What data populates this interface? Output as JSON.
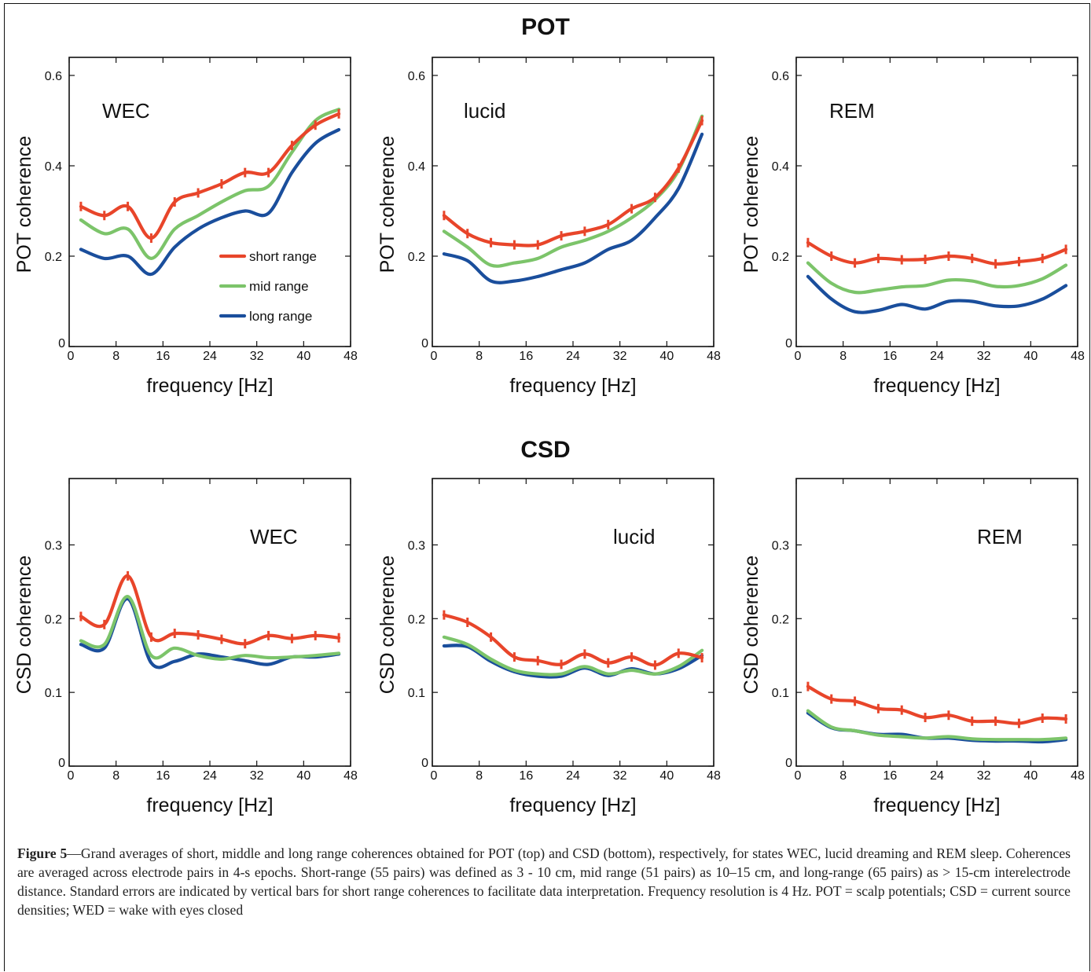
{
  "sections": {
    "pot_title": "POT",
    "csd_title": "CSD"
  },
  "legend": [
    {
      "label": "short range",
      "color": "#e8452a"
    },
    {
      "label": "mid range",
      "color": "#7cc46a"
    },
    {
      "label": "long range",
      "color": "#1a4e9c"
    }
  ],
  "colors": {
    "short": "#e8452a",
    "mid": "#7cc46a",
    "long": "#1a4e9c"
  },
  "caption": {
    "label": "Figure 5",
    "text": "—Grand averages of short, middle and long range coherences obtained for POT (top) and CSD (bottom), respectively, for states WEC, lucid dreaming and REM sleep. Coherences are averaged across electrode pairs in 4-s epochs. Short-range (55 pairs) was defined as 3 - 10 cm, mid range (51 pairs) as 10–15 cm, and long-range (65 pairs) as > 15-cm interelectrode distance. Standard errors are indicated by vertical bars for short range coherences to facilitate data interpretation. Frequency resolution is 4 Hz. POT = scalp potentials; CSD = current source densities; WED = wake with eyes closed"
  },
  "chart_data": [
    {
      "type": "line",
      "section": "POT",
      "state": "WEC",
      "xlabel": "frequency  [Hz]",
      "ylabel": "POT coherence",
      "xlim": [
        0,
        48
      ],
      "ylim": [
        0,
        0.64
      ],
      "xticks": [
        "0",
        "8",
        "16",
        "24",
        "32",
        "40",
        "48"
      ],
      "yticks": [
        {
          "v": 0,
          "t": "0"
        },
        {
          "v": 0.2,
          "t": "0.2"
        },
        {
          "v": 0.4,
          "t": "0.4"
        },
        {
          "v": 0.6,
          "t": "0.6"
        }
      ],
      "legend": true,
      "x": [
        2,
        6,
        10,
        14,
        18,
        22,
        26,
        30,
        34,
        38,
        42,
        46
      ],
      "series": [
        {
          "name": "short range",
          "key": "short",
          "errorbars": true,
          "values": [
            0.31,
            0.29,
            0.31,
            0.24,
            0.32,
            0.34,
            0.36,
            0.385,
            0.385,
            0.445,
            0.49,
            0.515
          ]
        },
        {
          "name": "mid range",
          "key": "mid",
          "values": [
            0.28,
            0.25,
            0.26,
            0.195,
            0.26,
            0.29,
            0.32,
            0.345,
            0.355,
            0.43,
            0.5,
            0.525
          ]
        },
        {
          "name": "long range",
          "key": "long",
          "values": [
            0.215,
            0.195,
            0.2,
            0.16,
            0.22,
            0.26,
            0.285,
            0.3,
            0.295,
            0.385,
            0.45,
            0.48
          ]
        }
      ]
    },
    {
      "type": "line",
      "section": "POT",
      "state": "lucid",
      "xlabel": "frequency  [Hz]",
      "ylabel": "POT coherence",
      "xlim": [
        0,
        48
      ],
      "ylim": [
        0,
        0.64
      ],
      "xticks": [
        "0",
        "8",
        "16",
        "24",
        "32",
        "40",
        "48"
      ],
      "yticks": [
        {
          "v": 0,
          "t": "0"
        },
        {
          "v": 0.2,
          "t": "0.2"
        },
        {
          "v": 0.4,
          "t": "0.4"
        },
        {
          "v": 0.6,
          "t": "0.6"
        }
      ],
      "x": [
        2,
        6,
        10,
        14,
        18,
        22,
        26,
        30,
        34,
        38,
        42,
        46
      ],
      "series": [
        {
          "name": "short range",
          "key": "short",
          "errorbars": true,
          "values": [
            0.29,
            0.25,
            0.23,
            0.225,
            0.225,
            0.245,
            0.255,
            0.27,
            0.305,
            0.33,
            0.395,
            0.5
          ]
        },
        {
          "name": "mid range",
          "key": "mid",
          "values": [
            0.255,
            0.22,
            0.18,
            0.185,
            0.195,
            0.22,
            0.235,
            0.255,
            0.285,
            0.325,
            0.39,
            0.51
          ]
        },
        {
          "name": "long range",
          "key": "long",
          "values": [
            0.205,
            0.19,
            0.145,
            0.145,
            0.155,
            0.17,
            0.185,
            0.215,
            0.235,
            0.285,
            0.35,
            0.47
          ]
        }
      ]
    },
    {
      "type": "line",
      "section": "POT",
      "state": "REM",
      "xlabel": "frequency  [Hz]",
      "ylabel": "POT coherence",
      "xlim": [
        0,
        48
      ],
      "ylim": [
        0,
        0.64
      ],
      "xticks": [
        "0",
        "8",
        "16",
        "24",
        "32",
        "40",
        "48"
      ],
      "yticks": [
        {
          "v": 0,
          "t": "0"
        },
        {
          "v": 0.2,
          "t": "0.2"
        },
        {
          "v": 0.4,
          "t": "0.4"
        },
        {
          "v": 0.6,
          "t": "0.6"
        }
      ],
      "x": [
        2,
        6,
        10,
        14,
        18,
        22,
        26,
        30,
        34,
        38,
        42,
        46
      ],
      "series": [
        {
          "name": "short range",
          "key": "short",
          "errorbars": true,
          "values": [
            0.23,
            0.2,
            0.185,
            0.195,
            0.192,
            0.193,
            0.2,
            0.195,
            0.183,
            0.188,
            0.195,
            0.215
          ]
        },
        {
          "name": "mid range",
          "key": "mid",
          "values": [
            0.185,
            0.14,
            0.12,
            0.125,
            0.132,
            0.135,
            0.147,
            0.145,
            0.133,
            0.135,
            0.15,
            0.18
          ]
        },
        {
          "name": "long range",
          "key": "long",
          "values": [
            0.155,
            0.105,
            0.077,
            0.08,
            0.093,
            0.083,
            0.1,
            0.1,
            0.09,
            0.09,
            0.105,
            0.135
          ]
        }
      ]
    },
    {
      "type": "line",
      "section": "CSD",
      "state": "WEC",
      "xlabel": "frequency  [Hz]",
      "ylabel": "CSD coherence",
      "xlim": [
        0,
        48
      ],
      "ylim": [
        0,
        0.39
      ],
      "xticks": [
        "0",
        "8",
        "16",
        "24",
        "32",
        "40",
        "48"
      ],
      "yticks": [
        {
          "v": 0,
          "t": "0"
        },
        {
          "v": 0.1,
          "t": "0.1"
        },
        {
          "v": 0.2,
          "t": "0.2"
        },
        {
          "v": 0.3,
          "t": "0.3"
        }
      ],
      "x": [
        2,
        6,
        10,
        14,
        18,
        22,
        26,
        30,
        34,
        38,
        42,
        46
      ],
      "series": [
        {
          "name": "short range",
          "key": "short",
          "errorbars": true,
          "values": [
            0.203,
            0.192,
            0.258,
            0.175,
            0.18,
            0.178,
            0.172,
            0.166,
            0.177,
            0.173,
            0.177,
            0.174
          ]
        },
        {
          "name": "mid range",
          "key": "mid",
          "values": [
            0.17,
            0.165,
            0.23,
            0.15,
            0.16,
            0.15,
            0.145,
            0.15,
            0.147,
            0.148,
            0.15,
            0.153
          ]
        },
        {
          "name": "long range",
          "key": "long",
          "values": [
            0.165,
            0.16,
            0.227,
            0.14,
            0.142,
            0.152,
            0.148,
            0.143,
            0.138,
            0.148,
            0.148,
            0.152
          ]
        }
      ]
    },
    {
      "type": "line",
      "section": "CSD",
      "state": "lucid",
      "xlabel": "frequency  [Hz]",
      "ylabel": "CSD coherence",
      "xlim": [
        0,
        48
      ],
      "ylim": [
        0,
        0.39
      ],
      "xticks": [
        "0",
        "8",
        "16",
        "24",
        "32",
        "40",
        "48"
      ],
      "yticks": [
        {
          "v": 0,
          "t": "0"
        },
        {
          "v": 0.1,
          "t": "0.1"
        },
        {
          "v": 0.2,
          "t": "0.2"
        },
        {
          "v": 0.3,
          "t": "0.3"
        }
      ],
      "x": [
        2,
        6,
        10,
        14,
        18,
        22,
        26,
        30,
        34,
        38,
        42,
        46
      ],
      "series": [
        {
          "name": "short range",
          "key": "short",
          "errorbars": true,
          "values": [
            0.205,
            0.195,
            0.175,
            0.148,
            0.143,
            0.138,
            0.152,
            0.14,
            0.148,
            0.137,
            0.153,
            0.147
          ]
        },
        {
          "name": "mid range",
          "key": "mid",
          "values": [
            0.175,
            0.165,
            0.145,
            0.13,
            0.125,
            0.125,
            0.135,
            0.125,
            0.13,
            0.125,
            0.135,
            0.157
          ]
        },
        {
          "name": "long range",
          "key": "long",
          "values": [
            0.163,
            0.162,
            0.142,
            0.128,
            0.122,
            0.122,
            0.133,
            0.123,
            0.132,
            0.125,
            0.132,
            0.15
          ]
        }
      ]
    },
    {
      "type": "line",
      "section": "CSD",
      "state": "REM",
      "xlabel": "frequency  [Hz]",
      "ylabel": "CSD coherence",
      "xlim": [
        0,
        48
      ],
      "ylim": [
        0,
        0.39
      ],
      "xticks": [
        "0",
        "8",
        "16",
        "24",
        "32",
        "40",
        "48"
      ],
      "yticks": [
        {
          "v": 0,
          "t": "0"
        },
        {
          "v": 0.1,
          "t": "0.1"
        },
        {
          "v": 0.2,
          "t": "0.2"
        },
        {
          "v": 0.3,
          "t": "0.3"
        }
      ],
      "x": [
        2,
        6,
        10,
        14,
        18,
        22,
        26,
        30,
        34,
        38,
        42,
        46
      ],
      "series": [
        {
          "name": "short range",
          "key": "short",
          "errorbars": true,
          "values": [
            0.108,
            0.091,
            0.088,
            0.078,
            0.076,
            0.066,
            0.069,
            0.061,
            0.061,
            0.058,
            0.065,
            0.064
          ]
        },
        {
          "name": "mid range",
          "key": "mid",
          "values": [
            0.075,
            0.053,
            0.048,
            0.042,
            0.04,
            0.038,
            0.04,
            0.037,
            0.036,
            0.036,
            0.036,
            0.038
          ]
        },
        {
          "name": "long range",
          "key": "long",
          "values": [
            0.072,
            0.052,
            0.048,
            0.043,
            0.043,
            0.038,
            0.038,
            0.035,
            0.034,
            0.034,
            0.033,
            0.036
          ]
        }
      ]
    }
  ]
}
